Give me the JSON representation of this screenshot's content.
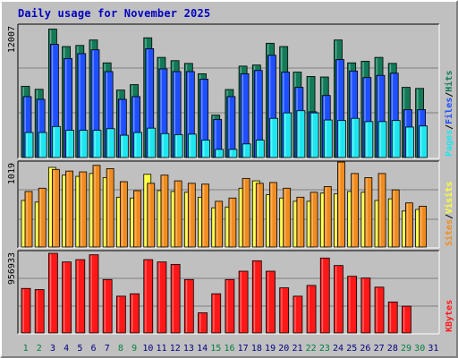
{
  "title": "Daily usage for November 2025",
  "colors": {
    "hits": "#127a58",
    "files": "#1e50ff",
    "pages": "#1ee6f0",
    "visits": "#ffff33",
    "sites": "#f08c1e",
    "kbytes": "#ff1818",
    "panel": "#c0c0c0",
    "weekend_day": "#008040",
    "weekday_day": "#000080"
  },
  "chart_data": [
    {
      "type": "bar",
      "title": "Daily usage for November 2025",
      "panel": "hits-files-pages",
      "max_label": "12007",
      "legend": [
        "Pages",
        "Files",
        "Hits"
      ],
      "legend_colors": [
        "#1ee6f0",
        "#1e50ff",
        "#127a58"
      ],
      "categories": [
        "1",
        "2",
        "3",
        "4",
        "5",
        "6",
        "7",
        "8",
        "9",
        "10",
        "11",
        "12",
        "13",
        "14",
        "15",
        "16",
        "17",
        "18",
        "19",
        "20",
        "21",
        "22",
        "23",
        "24",
        "25",
        "26",
        "27",
        "28",
        "29",
        "30",
        "31"
      ],
      "ylim": [
        0,
        12007
      ],
      "series": [
        {
          "name": "Hits",
          "values": [
            6550,
            6270,
            11800,
            10200,
            10300,
            10800,
            8700,
            6200,
            6700,
            11000,
            9200,
            8900,
            8650,
            7700,
            3900,
            6250,
            8400,
            8500,
            10500,
            10200,
            7850,
            7450,
            7400,
            10800,
            8700,
            8850,
            9200,
            8650,
            6450,
            6350,
            0
          ]
        },
        {
          "name": "Files",
          "values": [
            5600,
            5350,
            10400,
            9100,
            9550,
            9900,
            7900,
            5350,
            5600,
            10000,
            8150,
            7900,
            7900,
            7200,
            3500,
            5600,
            7700,
            8000,
            9400,
            7850,
            6450,
            4200,
            5700,
            9000,
            7950,
            7350,
            7550,
            7750,
            4400,
            4400,
            0
          ]
        },
        {
          "name": "Pages",
          "values": [
            2300,
            2300,
            2850,
            2500,
            2500,
            2500,
            2650,
            2050,
            2300,
            2700,
            2200,
            2100,
            2150,
            1600,
            750,
            750,
            1250,
            1600,
            3600,
            4100,
            4300,
            4100,
            3450,
            3400,
            3600,
            3300,
            3300,
            3400,
            2800,
            2900,
            0
          ]
        }
      ]
    },
    {
      "type": "bar",
      "panel": "visits-sites",
      "max_label": "1019",
      "legend": [
        "Sites",
        "Visits"
      ],
      "legend_colors": [
        "#f08c1e",
        "#ffff33"
      ],
      "categories": [
        "1",
        "2",
        "3",
        "4",
        "5",
        "6",
        "7",
        "8",
        "9",
        "10",
        "11",
        "12",
        "13",
        "14",
        "15",
        "16",
        "17",
        "18",
        "19",
        "20",
        "21",
        "22",
        "23",
        "24",
        "25",
        "26",
        "27",
        "28",
        "29",
        "30",
        "31"
      ],
      "ylim": [
        0,
        1019
      ],
      "series": [
        {
          "name": "Visits",
          "values": [
            570,
            550,
            975,
            880,
            865,
            900,
            850,
            610,
            600,
            890,
            690,
            680,
            670,
            610,
            480,
            490,
            720,
            810,
            640,
            600,
            560,
            560,
            660,
            650,
            680,
            670,
            570,
            590,
            440,
            460,
            0
          ]
        },
        {
          "name": "Sites",
          "values": [
            680,
            720,
            950,
            930,
            920,
            1000,
            960,
            800,
            690,
            780,
            880,
            810,
            780,
            770,
            560,
            600,
            840,
            780,
            790,
            720,
            610,
            670,
            740,
            1040,
            900,
            850,
            900,
            700,
            540,
            500,
            0
          ]
        }
      ]
    },
    {
      "type": "bar",
      "panel": "kbytes",
      "max_label": "956933",
      "legend": [
        "KBytes"
      ],
      "legend_colors": [
        "#ff1818"
      ],
      "categories": [
        "1",
        "2",
        "3",
        "4",
        "5",
        "6",
        "7",
        "8",
        "9",
        "10",
        "11",
        "12",
        "13",
        "14",
        "15",
        "16",
        "17",
        "18",
        "19",
        "20",
        "21",
        "22",
        "23",
        "24",
        "25",
        "26",
        "27",
        "28",
        "29",
        "30",
        "31"
      ],
      "ylim": [
        0,
        956933
      ],
      "series": [
        {
          "name": "KBytes",
          "values": [
            535000,
            521000,
            957000,
            853000,
            881000,
            939000,
            642000,
            442000,
            471000,
            881000,
            853000,
            824000,
            642000,
            242000,
            471000,
            642000,
            742000,
            867000,
            742000,
            542000,
            442000,
            571000,
            900000,
            810000,
            681000,
            660000,
            550000,
            372000,
            322000,
            0,
            0
          ]
        }
      ]
    }
  ],
  "legend_separator": "/"
}
